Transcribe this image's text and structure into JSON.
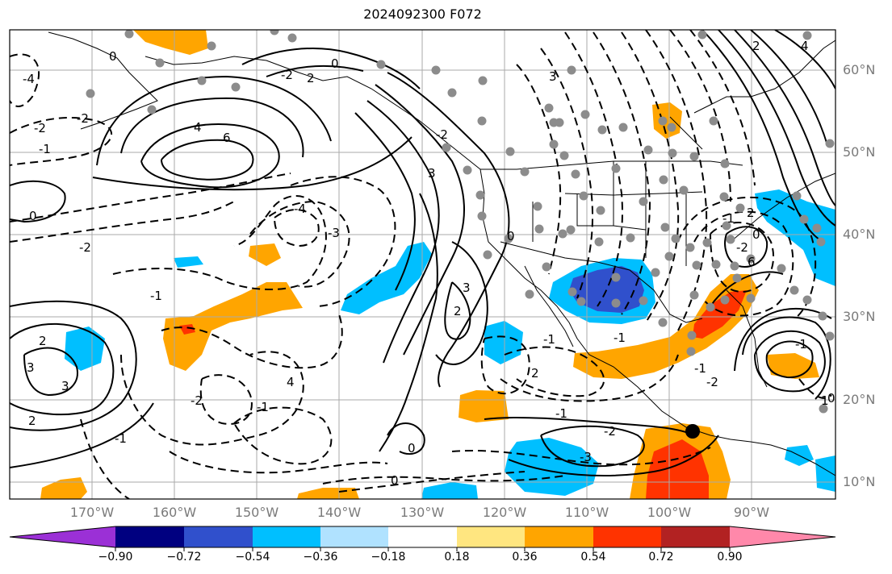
{
  "title": "2024092300 F072",
  "map": {
    "lat_labels": [
      "60°N",
      "50°N",
      "40°N",
      "30°N",
      "20°N",
      "10°N"
    ],
    "lon_labels": [
      "170°W",
      "160°W",
      "150°W",
      "140°W",
      "130°W",
      "120°W",
      "110°W",
      "100°W",
      "90°W"
    ],
    "contour_labels": [
      "-4",
      "-2",
      "-2",
      "-1",
      "0",
      "-1",
      "-2",
      "2",
      "3",
      "4",
      "6",
      "0",
      "-4",
      "-3",
      "-2",
      "-1",
      "-1",
      "2",
      "3",
      "2",
      "0",
      "-2",
      "2",
      "0",
      "-1",
      "2",
      "3",
      "4",
      "3",
      "0",
      "-1",
      "-3",
      "-2",
      "-1",
      "1",
      "2",
      "-2",
      "0",
      "6",
      "4",
      "3",
      "0",
      "0",
      "-1",
      "-2",
      "-1",
      "2",
      "-2",
      "-1"
    ],
    "marker": "storm-center"
  },
  "colorbar": {
    "labels": [
      "−0.90",
      "−0.72",
      "−0.54",
      "−0.36",
      "−0.18",
      "0.18",
      "0.36",
      "0.54",
      "0.72",
      "0.90"
    ],
    "colors": [
      "#9b30d6",
      "#000080",
      "#3050cc",
      "#00bfff",
      "#b0e2ff",
      "#ffffff",
      "#ffe680",
      "#ffa500",
      "#ff3300",
      "#b22222",
      "#ff88aa"
    ]
  }
}
